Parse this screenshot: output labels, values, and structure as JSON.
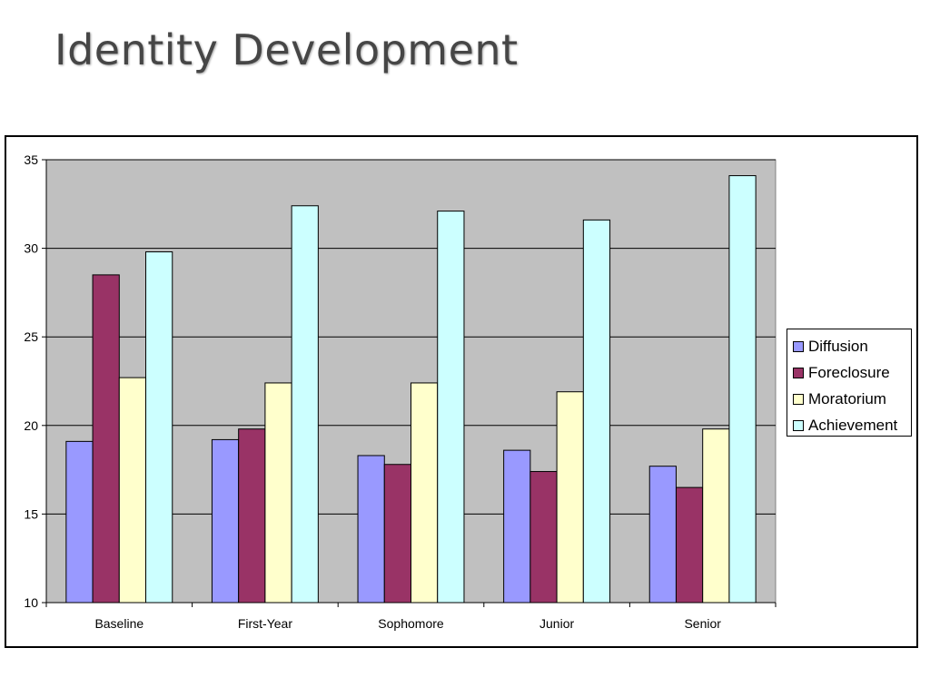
{
  "slide": {
    "title": "Identity Development"
  },
  "chart_data": {
    "type": "bar",
    "title": "",
    "xlabel": "",
    "ylabel": "",
    "ylim": [
      10,
      35
    ],
    "yticks": [
      "10",
      "15",
      "20",
      "25",
      "30",
      "35"
    ],
    "categories": [
      "Baseline",
      "First-Year",
      "Sophomore",
      "Junior",
      "Senior"
    ],
    "grid": "horizontal major gridlines",
    "plot_background": "#c0c0c0",
    "legend_position": "right",
    "series": [
      {
        "name": "Diffusion",
        "color": "#9999ff",
        "values": [
          19.1,
          19.2,
          18.3,
          18.6,
          17.7
        ]
      },
      {
        "name": "Foreclosure",
        "color": "#993366",
        "values": [
          28.5,
          19.8,
          17.8,
          17.4,
          16.5
        ]
      },
      {
        "name": "Moratorium",
        "color": "#ffffcc",
        "values": [
          22.7,
          22.4,
          22.4,
          21.9,
          19.8
        ]
      },
      {
        "name": "Achievement",
        "color": "#ccffff",
        "values": [
          29.8,
          32.4,
          32.1,
          31.6,
          34.1
        ]
      }
    ]
  }
}
